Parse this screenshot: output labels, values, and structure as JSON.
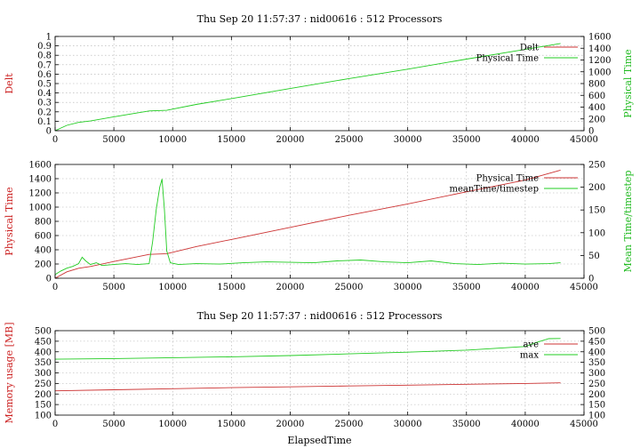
{
  "chart_data": [
    {
      "type": "line",
      "title": "Thu Sep 20 11:57:37 : nid00616 : 512 Processors",
      "xlabel": "",
      "ylabel_left": "Delt",
      "ylabel_right": "Physical Time",
      "xlim": [
        0,
        45000
      ],
      "xticks": [
        0,
        5000,
        10000,
        15000,
        20000,
        25000,
        30000,
        35000,
        40000,
        45000
      ],
      "ylim_left": [
        0,
        1
      ],
      "yticks_left": [
        0,
        0.1,
        0.2,
        0.3,
        0.4,
        0.5,
        0.6,
        0.7,
        0.8,
        0.9,
        1
      ],
      "ylim_right": [
        0,
        1600
      ],
      "yticks_right": [
        0,
        200,
        400,
        600,
        800,
        1000,
        1200,
        1400,
        1600
      ],
      "grid": true,
      "legend_position": "top-right",
      "colors": {
        "left_label": "#cc2222",
        "right_label": "#22bb22",
        "series_1": "#cc3333",
        "series_2": "#22cc22"
      },
      "series": [
        {
          "name": "Delt",
          "axis": "left",
          "x": [],
          "y": []
        },
        {
          "name": "Physical Time",
          "axis": "right",
          "x": [
            0,
            500,
            1000,
            2000,
            3000,
            5000,
            8000,
            9500,
            12000,
            15000,
            20000,
            25000,
            30000,
            35000,
            40000,
            43000
          ],
          "y": [
            0,
            45,
            90,
            140,
            165,
            235,
            335,
            345,
            445,
            545,
            715,
            885,
            1045,
            1215,
            1380,
            1480
          ]
        }
      ]
    },
    {
      "type": "line",
      "title": "",
      "xlabel": "",
      "ylabel_left": "Physical Time",
      "ylabel_right": "Mean Time/timestep",
      "xlim": [
        0,
        45000
      ],
      "xticks": [
        0,
        5000,
        10000,
        15000,
        20000,
        25000,
        30000,
        35000,
        40000,
        45000
      ],
      "ylim_left": [
        0,
        1600
      ],
      "yticks_left": [
        0,
        200,
        400,
        600,
        800,
        1000,
        1200,
        1400,
        1600
      ],
      "ylim_right": [
        0,
        250
      ],
      "yticks_right": [
        0,
        50,
        100,
        150,
        200,
        250
      ],
      "grid": true,
      "legend_position": "top-right",
      "colors": {
        "left_label": "#cc2222",
        "right_label": "#22bb22",
        "series_1": "#cc3333",
        "series_2": "#22cc22"
      },
      "series": [
        {
          "name": "Physical Time",
          "axis": "left",
          "x": [
            0,
            1000,
            2000,
            3000,
            5000,
            8000,
            9500,
            12000,
            15000,
            20000,
            25000,
            30000,
            35000,
            40000,
            43000
          ],
          "y": [
            0,
            90,
            140,
            165,
            235,
            335,
            345,
            445,
            545,
            715,
            885,
            1045,
            1215,
            1380,
            1520
          ]
        },
        {
          "name": "meanTime/timestep",
          "axis": "right",
          "x": [
            0,
            500,
            1000,
            1500,
            2000,
            2300,
            2600,
            3000,
            3500,
            4000,
            5000,
            6000,
            7000,
            8000,
            8300,
            8600,
            8900,
            9100,
            9300,
            9500,
            9800,
            10500,
            12000,
            14000,
            16000,
            18000,
            20000,
            22000,
            24000,
            26000,
            28000,
            30000,
            32000,
            34000,
            36000,
            38000,
            40000,
            42000,
            43000
          ],
          "y": [
            8,
            16,
            22,
            26,
            32,
            46,
            38,
            30,
            34,
            28,
            30,
            32,
            30,
            32,
            80,
            150,
            200,
            218,
            150,
            60,
            34,
            30,
            32,
            31,
            34,
            36,
            35,
            34,
            38,
            40,
            36,
            34,
            38,
            32,
            30,
            33,
            31,
            32,
            34
          ]
        }
      ]
    },
    {
      "type": "line",
      "title": "Thu Sep 20 11:57:37 : nid00616 : 512 Processors",
      "xlabel": "ElapsedTime",
      "ylabel_left": "Memory usage [MB]",
      "ylabel_right": "",
      "xlim": [
        0,
        45000
      ],
      "xticks": [
        0,
        5000,
        10000,
        15000,
        20000,
        25000,
        30000,
        35000,
        40000,
        45000
      ],
      "ylim_left": [
        100,
        500
      ],
      "yticks_left": [
        100,
        150,
        200,
        250,
        300,
        350,
        400,
        450,
        500
      ],
      "ylim_right": [
        100,
        500
      ],
      "yticks_right": [
        100,
        150,
        200,
        250,
        300,
        350,
        400,
        450,
        500
      ],
      "grid": true,
      "legend_position": "top-right",
      "colors": {
        "left_label": "#cc2222",
        "right_label": "#22bb22",
        "series_1": "#cc3333",
        "series_2": "#22cc22"
      },
      "series": [
        {
          "name": "ave",
          "axis": "left",
          "x": [
            0,
            5000,
            10000,
            15000,
            20000,
            25000,
            30000,
            35000,
            40000,
            43000
          ],
          "y": [
            215,
            220,
            225,
            230,
            234,
            238,
            242,
            246,
            250,
            253
          ]
        },
        {
          "name": "max",
          "axis": "left",
          "x": [
            0,
            5000,
            10000,
            15000,
            20000,
            25000,
            30000,
            35000,
            40000,
            41000,
            42000,
            43000
          ],
          "y": [
            365,
            368,
            372,
            376,
            382,
            390,
            398,
            408,
            425,
            445,
            462,
            463
          ]
        }
      ]
    }
  ]
}
